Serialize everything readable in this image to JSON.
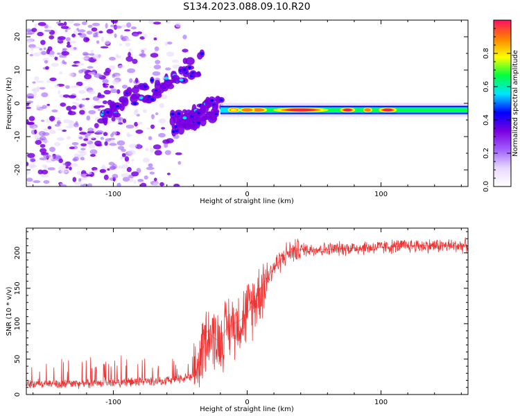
{
  "figure_title": "S134.2023.088.09.10.R20",
  "colors": {
    "snr_line": "#ee3333",
    "axis": "#000000",
    "cmap": [
      "#ffffff",
      "#e8d8ff",
      "#a060ff",
      "#7a00e0",
      "#0000ff",
      "#00e5ff",
      "#00ff40",
      "#ffff00",
      "#ff8000",
      "#ff1060"
    ]
  },
  "chart_data": [
    {
      "type": "heatmap",
      "description": "spectrogram",
      "xlabel": "Height of straight line (km)",
      "ylabel": "Frequency (Hz)",
      "xlim": [
        -165,
        165
      ],
      "ylim": [
        -25,
        25
      ],
      "xticks": [
        -100,
        0,
        100
      ],
      "yticks": [
        -20,
        -10,
        0,
        10,
        20
      ],
      "colorbar": {
        "label": "Normalized spectral amplitude",
        "range": [
          0,
          1
        ],
        "ticks": [
          0.0,
          0.2,
          0.4,
          0.6,
          0.8
        ],
        "tick_labels": [
          "0.0",
          "0.2",
          "0.4",
          "0.6",
          "0.8"
        ]
      },
      "features": [
        {
          "name": "noise",
          "x_range": [
            -165,
            -40
          ],
          "freq_range": [
            -25,
            25
          ],
          "amplitude": 0.1
        },
        {
          "name": "rising_trace",
          "x_start": -110,
          "x_end": -35,
          "freq_start": -4,
          "freq_end": 12,
          "amplitude": 0.35
        },
        {
          "name": "lower_branch",
          "x_start": -55,
          "x_end": -20,
          "freq_start": -6,
          "freq_end": -1,
          "amplitude": 0.3
        },
        {
          "name": "stable_band",
          "x_start": -20,
          "x_end": 165,
          "freq": -2,
          "amplitude": 0.75
        }
      ]
    },
    {
      "type": "line",
      "xlabel": "Height of straight line (km)",
      "ylabel": "SNR (10 * v/v)",
      "xlim": [
        -165,
        165
      ],
      "ylim": [
        0,
        235
      ],
      "xticks": [
        -100,
        0,
        100
      ],
      "yticks": [
        0,
        50,
        100,
        150,
        200
      ],
      "series": [
        {
          "x": [
            -165,
            -140,
            -120,
            -100,
            -80,
            -60,
            -50,
            -40,
            -35,
            -30,
            -25,
            -20,
            -15,
            -10,
            -5,
            0,
            5,
            10,
            15,
            20,
            30,
            40,
            60,
            80,
            100,
            120,
            140,
            165
          ],
          "y": [
            15,
            15,
            16,
            17,
            18,
            20,
            22,
            25,
            50,
            90,
            80,
            75,
            95,
            100,
            105,
            115,
            130,
            150,
            165,
            180,
            200,
            205,
            205,
            207,
            208,
            210,
            210,
            210
          ]
        }
      ]
    }
  ]
}
